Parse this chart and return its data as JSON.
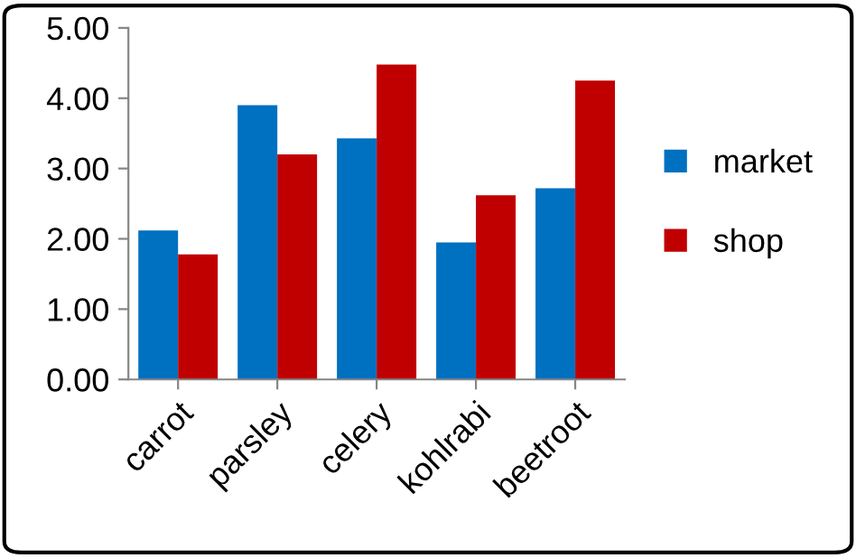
{
  "chart_data": {
    "type": "bar",
    "categories": [
      "carrot",
      "parsley",
      "celery",
      "kohlrabi",
      "beetroot"
    ],
    "series": [
      {
        "name": "market",
        "color": "#0070c0",
        "values": [
          2.12,
          3.9,
          3.43,
          1.95,
          2.72
        ]
      },
      {
        "name": "shop",
        "color": "#c00000",
        "values": [
          1.78,
          3.2,
          4.48,
          2.62,
          4.25
        ]
      }
    ],
    "ylim": [
      0,
      5
    ],
    "yticks": [
      {
        "value": 0,
        "label": "0.00"
      },
      {
        "value": 1,
        "label": "1.00"
      },
      {
        "value": 2,
        "label": "2.00"
      },
      {
        "value": 3,
        "label": "3.00"
      },
      {
        "value": 4,
        "label": "4.00"
      },
      {
        "value": 5,
        "label": "5.00"
      }
    ],
    "grid": false,
    "legend": "right"
  }
}
